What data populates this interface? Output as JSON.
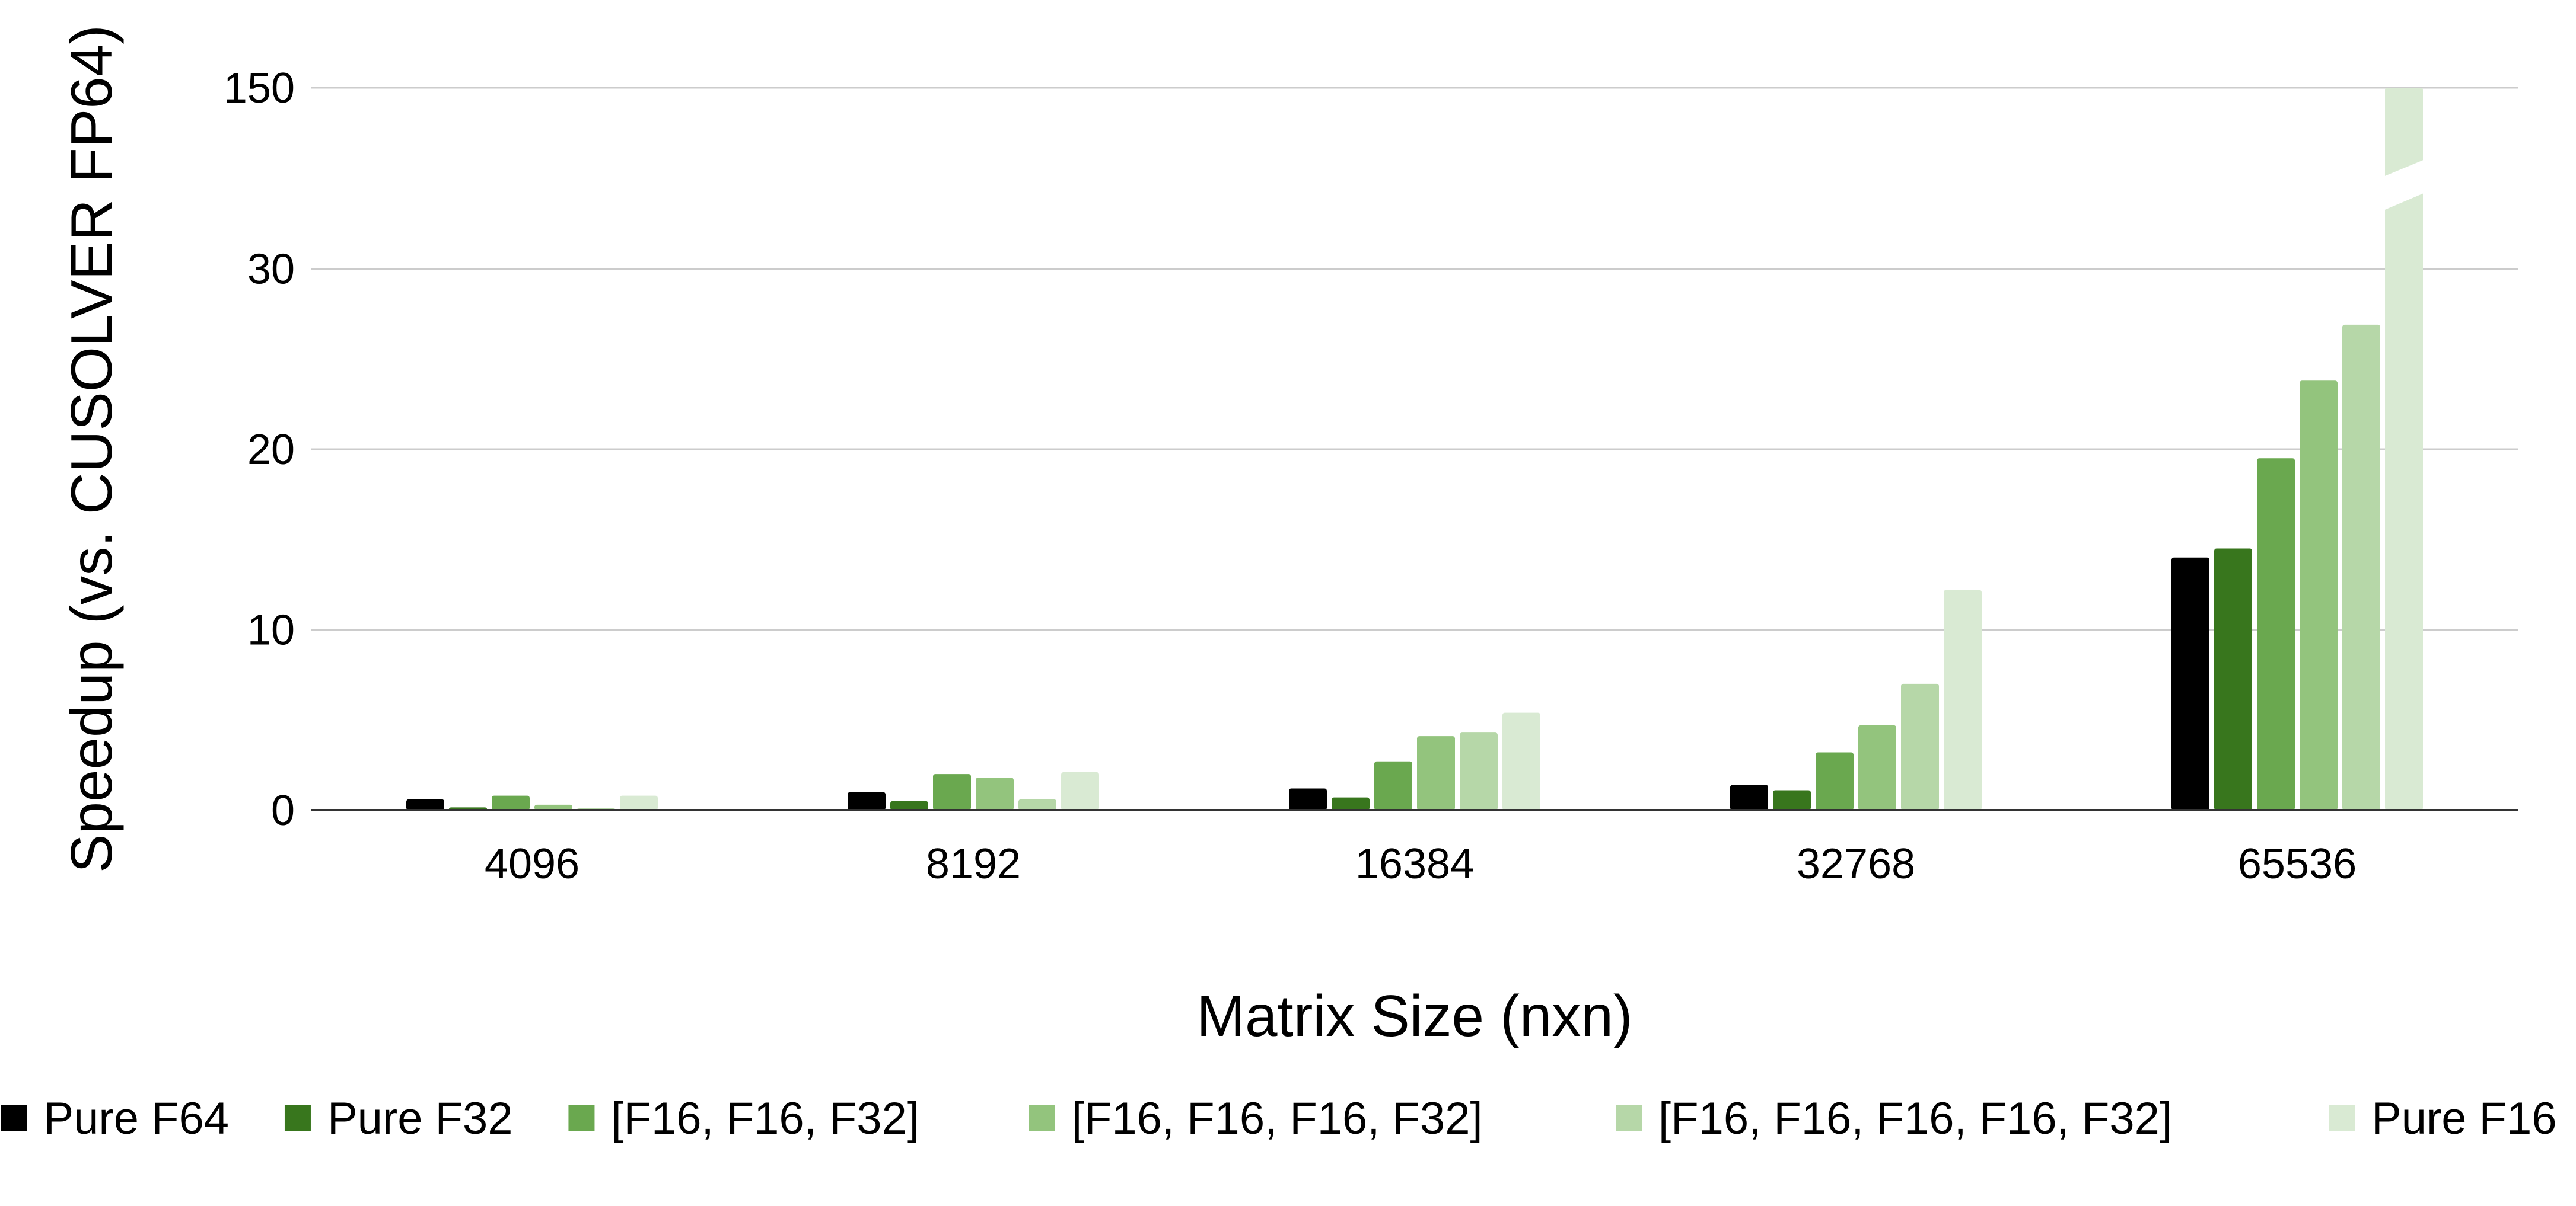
{
  "chart_data": {
    "type": "bar",
    "title": "",
    "xlabel": "Matrix Size (nxn)",
    "ylabel": "Speedup (vs. CUSOLVER FP64)",
    "categories": [
      "4096",
      "8192",
      "16384",
      "32768",
      "65536"
    ],
    "y_tick_labels": [
      "0",
      "10",
      "20",
      "30",
      "150"
    ],
    "y_scale_note": "broken axis: 30 to 150 segment compressed",
    "ylim": [
      0,
      150
    ],
    "grid": true,
    "legend_position": "bottom",
    "series": [
      {
        "name": "Pure F64",
        "color": "#000000",
        "values": [
          0.6,
          1.0,
          1.2,
          1.4,
          14.0
        ]
      },
      {
        "name": "Pure F32",
        "color": "#38761d",
        "values": [
          0.15,
          0.5,
          0.7,
          1.1,
          14.5
        ]
      },
      {
        "name": "[F16, F16, F32]",
        "color": "#6aa84f",
        "values": [
          0.8,
          2.0,
          2.7,
          3.2,
          19.5
        ]
      },
      {
        "name": "[F16, F16, F16, F32]",
        "color": "#93c47d",
        "values": [
          0.3,
          1.8,
          4.1,
          4.7,
          23.8
        ]
      },
      {
        "name": "[F16, F16, F16, F16, F32]",
        "color": "#b6d7a8",
        "values": [
          0.1,
          0.6,
          4.3,
          7.0,
          26.9
        ]
      },
      {
        "name": "Pure F16",
        "color": "#d9ead3",
        "values": [
          0.8,
          2.1,
          5.4,
          12.2,
          150
        ]
      }
    ]
  }
}
